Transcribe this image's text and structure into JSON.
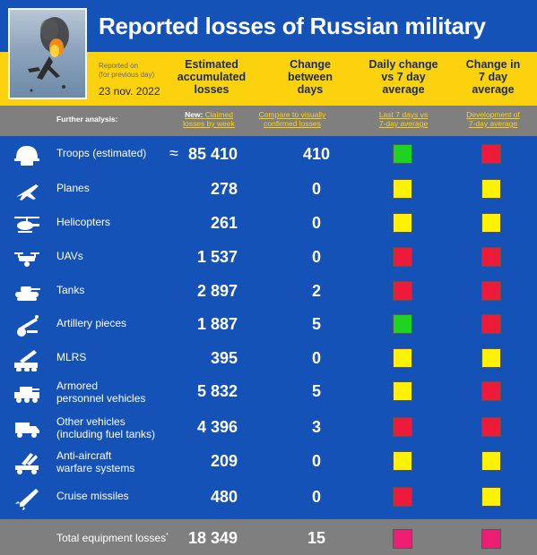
{
  "header": {
    "title": "Reported losses of Russian military",
    "reported_on": "Reported on",
    "for_previous_day": "(for previous day)",
    "date": "23 nov. 2022"
  },
  "columns": {
    "estimated": [
      "Estimated",
      "accumulated",
      "losses"
    ],
    "change": [
      "Change",
      "between",
      "days"
    ],
    "daily": [
      "Daily change",
      "vs 7 day",
      "average"
    ],
    "change7": [
      "Change in",
      "7 day",
      "average"
    ]
  },
  "analysis": {
    "label": "Further analysis:",
    "new_lead": "New:",
    "new_link_1": "Claimed",
    "new_link_2": "losses by week",
    "compare_1": "Compare to visually",
    "compare_2": "confirmed losses",
    "last7_1": "Last 7 days vs",
    "last7_2": "7-day average",
    "dev_1": "Development of",
    "dev_2": "7-day average"
  },
  "colors": {
    "green": "#1fd41f",
    "yellow": "#fff200",
    "red": "#ed1a3a",
    "pink": "#ee1e74"
  },
  "rows": [
    {
      "icon": "helmet-icon",
      "label": [
        "Troops (estimated)"
      ],
      "approx": "≈",
      "value": "85 410",
      "change": "410",
      "daily": "green",
      "change7": "red"
    },
    {
      "icon": "plane-icon",
      "label": [
        "Planes"
      ],
      "value": "278",
      "change": "0",
      "daily": "yellow",
      "change7": "yellow"
    },
    {
      "icon": "helicopter-icon",
      "label": [
        "Helicopters"
      ],
      "value": "261",
      "change": "0",
      "daily": "yellow",
      "change7": "yellow"
    },
    {
      "icon": "drone-icon",
      "label": [
        "UAVs"
      ],
      "value": "1 537",
      "change": "0",
      "daily": "red",
      "change7": "red"
    },
    {
      "icon": "tank-icon",
      "label": [
        "Tanks"
      ],
      "value": "2 897",
      "change": "2",
      "daily": "red",
      "change7": "red"
    },
    {
      "icon": "artillery-icon",
      "label": [
        "Artillery pieces"
      ],
      "value": "1 887",
      "change": "5",
      "daily": "green",
      "change7": "red"
    },
    {
      "icon": "mlrs-icon",
      "label": [
        "MLRS"
      ],
      "value": "395",
      "change": "0",
      "daily": "yellow",
      "change7": "yellow"
    },
    {
      "icon": "apc-icon",
      "label": [
        "Armored",
        "personnel vehicles"
      ],
      "value": "5 832",
      "change": "5",
      "daily": "yellow",
      "change7": "red"
    },
    {
      "icon": "truck-icon",
      "label": [
        "Other vehicles",
        "(including fuel tanks)"
      ],
      "value": "4 396",
      "change": "3",
      "daily": "red",
      "change7": "red"
    },
    {
      "icon": "anti-aircraft-icon",
      "label": [
        "Anti-aircraft",
        "warfare systems"
      ],
      "value": "209",
      "change": "0",
      "daily": "yellow",
      "change7": "yellow"
    },
    {
      "icon": "missile-icon",
      "label": [
        "Cruise missiles"
      ],
      "value": "480",
      "change": "0",
      "daily": "red",
      "change7": "yellow"
    }
  ],
  "total": {
    "label": "Total equipment losses",
    "marker": "*",
    "value": "18 349",
    "change": "15",
    "daily": "pink",
    "change7": "pink"
  }
}
